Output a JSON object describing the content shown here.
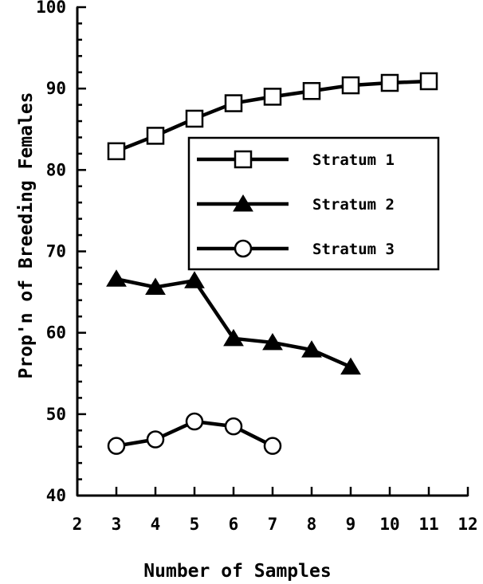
{
  "chart_data": {
    "type": "line",
    "title": "",
    "xlabel": "Number of Samples",
    "ylabel": "Prop'n of Breeding Females",
    "xlim": [
      2,
      12
    ],
    "ylim": [
      40,
      100
    ],
    "xticks": [
      2,
      3,
      4,
      5,
      6,
      7,
      8,
      9,
      10,
      11,
      12
    ],
    "yticks": [
      40,
      50,
      60,
      70,
      80,
      90,
      100
    ],
    "grid": false,
    "legend_position": "center-right",
    "series": [
      {
        "name": "Stratum 1",
        "marker": "open-square",
        "x": [
          3,
          4,
          5,
          6,
          7,
          8,
          9,
          10,
          11
        ],
        "y": [
          82.3,
          84.2,
          86.3,
          88.2,
          89.0,
          89.7,
          90.4,
          90.7,
          90.9
        ]
      },
      {
        "name": "Stratum 2",
        "marker": "filled-triangle",
        "x": [
          3,
          4,
          5,
          6,
          7,
          8,
          9
        ],
        "y": [
          66.6,
          65.6,
          66.4,
          59.3,
          58.8,
          57.9,
          55.8
        ]
      },
      {
        "name": "Stratum 3",
        "marker": "open-circle",
        "x": [
          3,
          4,
          5,
          6,
          7
        ],
        "y": [
          46.1,
          46.9,
          49.1,
          48.5,
          46.1
        ]
      }
    ]
  }
}
